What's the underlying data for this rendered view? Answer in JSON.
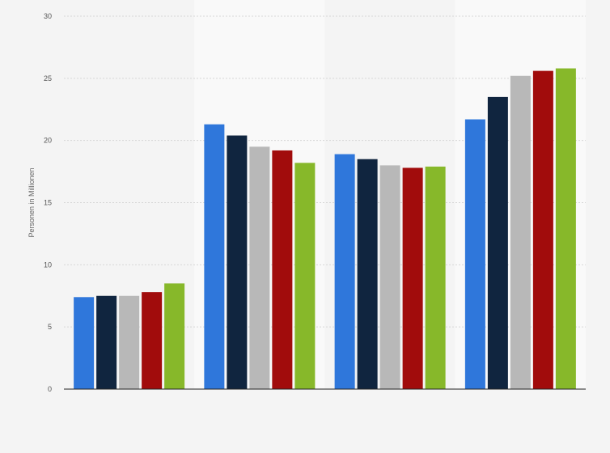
{
  "chart_data": {
    "type": "bar",
    "ylabel": "Personen in Millionen",
    "ylim": [
      0,
      30
    ],
    "yticks": [
      "0",
      "5",
      "10",
      "15",
      "20",
      "25",
      "30"
    ],
    "grid": true,
    "categories": [
      "",
      "",
      "",
      ""
    ],
    "series": [
      {
        "color": "#2f77db",
        "values": [
          7.4,
          21.3,
          18.9,
          21.7
        ]
      },
      {
        "color": "#10253f",
        "values": [
          7.5,
          20.4,
          18.5,
          23.5
        ]
      },
      {
        "color": "#b8b8b8",
        "values": [
          7.5,
          19.5,
          18.0,
          25.2
        ]
      },
      {
        "color": "#a10c0c",
        "values": [
          7.8,
          19.2,
          17.8,
          25.6
        ]
      },
      {
        "color": "#87b82a",
        "values": [
          8.5,
          18.2,
          17.9,
          25.8
        ]
      }
    ]
  }
}
